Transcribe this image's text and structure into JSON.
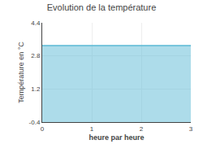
{
  "chart_data": {
    "type": "area",
    "title": "Evolution de la température",
    "x_label": "heure par heure",
    "y_label": "Température en °C",
    "x": [
      0,
      3
    ],
    "series": [
      {
        "color": "#5bbad5",
        "values": [
          3.3,
          3.3
        ]
      }
    ],
    "xlim": [
      0,
      3
    ],
    "xticks": [
      0,
      1,
      2,
      3
    ],
    "ylim": [
      -0.4,
      4.4
    ],
    "yticks": [
      -0.4,
      1.2,
      2.8,
      4.4
    ],
    "grid": true
  }
}
